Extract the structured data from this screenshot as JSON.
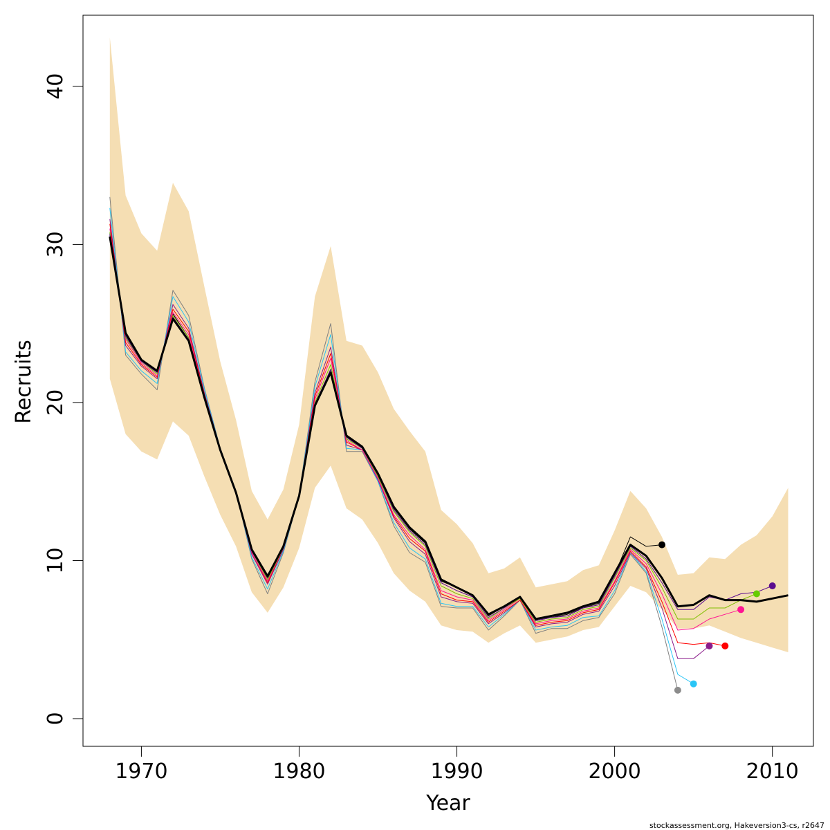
{
  "chart_data": {
    "type": "line",
    "title": "",
    "xlabel": "Year",
    "ylabel": "Recruits",
    "xlim": [
      1966.3,
      2012.6
    ],
    "ylim": [
      -1.75,
      44.5
    ],
    "x_ticks": [
      1970,
      1980,
      1990,
      2000,
      2010
    ],
    "x_tick_labels": [
      "1970",
      "1980",
      "1990",
      "2000",
      "2010"
    ],
    "y_ticks": [
      0,
      10,
      20,
      30,
      40
    ],
    "y_tick_labels": [
      "0",
      "10",
      "20",
      "30",
      "40"
    ],
    "grid": false,
    "legend": "none",
    "credit": "stockassessment.org, Hakeversion3-cs, r2647",
    "band": {
      "color": "#F5DEB3",
      "x": [
        1968,
        1969,
        1970,
        1971,
        1972,
        1973,
        1974,
        1975,
        1976,
        1977,
        1978,
        1979,
        1980,
        1981,
        1982,
        1983,
        1984,
        1985,
        1986,
        1987,
        1988,
        1989,
        1990,
        1991,
        1992,
        1993,
        1994,
        1995,
        1996,
        1997,
        1998,
        1999,
        2000,
        2001,
        2002,
        2003,
        2004,
        2005,
        2006,
        2007,
        2008,
        2009,
        2010,
        2011
      ],
      "lower": [
        21.5,
        18.0,
        16.9,
        16.4,
        18.8,
        17.9,
        15.3,
        12.9,
        10.9,
        8.0,
        6.7,
        8.3,
        10.8,
        14.6,
        16.0,
        13.3,
        12.6,
        11.1,
        9.2,
        8.1,
        7.4,
        5.9,
        5.6,
        5.5,
        4.8,
        5.4,
        5.9,
        4.8,
        5.0,
        5.2,
        5.6,
        5.8,
        7.1,
        8.4,
        8.0,
        6.9,
        5.7,
        5.7,
        5.9,
        5.5,
        5.1,
        4.8,
        4.5,
        4.2
      ],
      "upper": [
        43.1,
        33.1,
        30.7,
        29.6,
        33.9,
        32.1,
        27.3,
        22.6,
        18.9,
        14.4,
        12.6,
        14.5,
        18.6,
        26.7,
        29.9,
        23.9,
        23.6,
        21.9,
        19.6,
        18.2,
        16.9,
        13.2,
        12.3,
        11.1,
        9.2,
        9.5,
        10.2,
        8.3,
        8.5,
        8.7,
        9.4,
        9.7,
        11.9,
        14.4,
        13.3,
        11.5,
        9.1,
        9.2,
        10.2,
        10.1,
        11.0,
        11.6,
        12.8,
        14.6
      ]
    },
    "series": [
      {
        "color": "#000000",
        "width": 3,
        "x": [
          1968,
          1969,
          1970,
          1971,
          1972,
          1973,
          1974,
          1975,
          1976,
          1977,
          1978,
          1979,
          1980,
          1981,
          1982,
          1983,
          1984,
          1985,
          1986,
          1987,
          1988,
          1989,
          1990,
          1991,
          1992,
          1993,
          1994,
          1995,
          1996,
          1997,
          1998,
          1999,
          2000,
          2001,
          2002,
          2003,
          2004,
          2005,
          2006,
          2007,
          2008,
          2009,
          2010,
          2011
        ],
        "y": [
          30.5,
          24.4,
          22.7,
          22.0,
          25.3,
          23.9,
          20.3,
          17.0,
          14.3,
          10.7,
          9.0,
          10.9,
          14.1,
          19.8,
          21.9,
          17.9,
          17.2,
          15.5,
          13.4,
          12.1,
          11.2,
          8.8,
          8.3,
          7.8,
          6.6,
          7.1,
          7.7,
          6.3,
          6.5,
          6.7,
          7.1,
          7.4,
          9.2,
          11.0,
          10.3,
          8.9,
          7.1,
          7.2,
          7.8,
          7.5,
          7.5,
          7.4,
          7.6,
          7.8
        ]
      },
      {
        "color": "#000000",
        "width": 1,
        "x": [
          1968,
          1969,
          1970,
          1971,
          1972,
          1973,
          1974,
          1975,
          1976,
          1977,
          1978,
          1979,
          1980,
          1981,
          1982,
          1983,
          1984,
          1985,
          1986,
          1987,
          1988,
          1989,
          1990,
          1991,
          1992,
          1993,
          1994,
          1995,
          1996,
          1997,
          1998,
          1999,
          2000,
          2001,
          2002,
          2003
        ],
        "y": [
          30.7,
          24.3,
          22.6,
          21.9,
          25.6,
          24.1,
          20.4,
          17.0,
          14.3,
          10.7,
          9.1,
          10.9,
          14.1,
          19.8,
          22.1,
          17.8,
          17.1,
          15.4,
          13.3,
          12.0,
          11.1,
          8.7,
          8.3,
          7.8,
          6.5,
          7.1,
          7.7,
          6.2,
          6.4,
          6.6,
          7.0,
          7.3,
          9.1,
          11.5,
          10.9,
          11.0
        ]
      },
      {
        "color": "#7F7F7F",
        "width": 1,
        "x": [
          1968,
          1969,
          1970,
          1971,
          1972,
          1973,
          1974,
          1975,
          1976,
          1977,
          1978,
          1979,
          1980,
          1981,
          1982,
          1983,
          1984,
          1985,
          1986,
          1987,
          1988,
          1989,
          1990,
          1991,
          1992,
          1993,
          1994,
          1995,
          1996,
          1997,
          1998,
          1999,
          2000,
          2001,
          2002,
          2003,
          2004
        ],
        "y": [
          33.0,
          23.0,
          21.8,
          20.8,
          27.1,
          25.5,
          20.9,
          17.1,
          14.4,
          10.1,
          7.9,
          10.5,
          14.1,
          21.3,
          25.0,
          16.9,
          16.9,
          15.0,
          12.2,
          10.5,
          9.9,
          7.1,
          7.0,
          7.0,
          5.6,
          6.5,
          7.5,
          5.4,
          5.7,
          5.7,
          6.2,
          6.4,
          7.9,
          10.4,
          9.2,
          5.8,
          1.8
        ]
      },
      {
        "color": "#29C5F6",
        "width": 1,
        "x": [
          1968,
          1969,
          1970,
          1971,
          1972,
          1973,
          1974,
          1975,
          1976,
          1977,
          1978,
          1979,
          1980,
          1981,
          1982,
          1983,
          1984,
          1985,
          1986,
          1987,
          1988,
          1989,
          1990,
          1991,
          1992,
          1993,
          1994,
          1995,
          1996,
          1997,
          1998,
          1999,
          2000,
          2001,
          2002,
          2003,
          2004,
          2005
        ],
        "y": [
          32.3,
          23.2,
          22.0,
          21.2,
          26.7,
          25.1,
          20.8,
          17.1,
          14.4,
          10.2,
          8.2,
          10.6,
          14.1,
          21.0,
          24.3,
          17.1,
          17.0,
          15.0,
          12.4,
          10.8,
          10.1,
          7.3,
          7.1,
          7.1,
          5.8,
          6.6,
          7.5,
          5.6,
          5.8,
          5.9,
          6.4,
          6.5,
          8.1,
          10.5,
          9.3,
          6.3,
          2.8,
          2.2
        ]
      },
      {
        "color": "#8B1C8B",
        "width": 1,
        "x": [
          1968,
          1969,
          1970,
          1971,
          1972,
          1973,
          1974,
          1975,
          1976,
          1977,
          1978,
          1979,
          1980,
          1981,
          1982,
          1983,
          1984,
          1985,
          1986,
          1987,
          1988,
          1989,
          1990,
          1991,
          1992,
          1993,
          1994,
          1995,
          1996,
          1997,
          1998,
          1999,
          2000,
          2001,
          2002,
          2003,
          2004,
          2005,
          2006
        ],
        "y": [
          31.6,
          23.6,
          22.3,
          21.5,
          26.2,
          24.7,
          20.6,
          17.1,
          14.3,
          10.4,
          8.5,
          10.7,
          14.1,
          20.6,
          23.5,
          17.3,
          17.0,
          15.1,
          12.7,
          11.2,
          10.4,
          7.7,
          7.4,
          7.3,
          6.0,
          6.7,
          7.5,
          5.8,
          6.0,
          6.1,
          6.6,
          6.8,
          8.4,
          10.5,
          9.5,
          7.0,
          3.8,
          3.8,
          4.6
        ]
      },
      {
        "color": "#FF0000",
        "width": 1,
        "x": [
          1968,
          1969,
          1970,
          1971,
          1972,
          1973,
          1974,
          1975,
          1976,
          1977,
          1978,
          1979,
          1980,
          1981,
          1982,
          1983,
          1984,
          1985,
          1986,
          1987,
          1988,
          1989,
          1990,
          1991,
          1992,
          1993,
          1994,
          1995,
          1996,
          1997,
          1998,
          1999,
          2000,
          2001,
          2002,
          2003,
          2004,
          2005,
          2006,
          2007
        ],
        "y": [
          31.3,
          23.8,
          22.4,
          21.6,
          25.9,
          24.5,
          20.5,
          17.0,
          14.3,
          10.5,
          8.6,
          10.8,
          14.1,
          20.4,
          23.1,
          17.5,
          17.0,
          15.2,
          12.8,
          11.4,
          10.6,
          7.9,
          7.5,
          7.4,
          6.1,
          6.8,
          7.5,
          5.9,
          6.1,
          6.2,
          6.7,
          6.9,
          8.6,
          10.6,
          9.6,
          7.4,
          4.8,
          4.7,
          4.8,
          4.6
        ]
      },
      {
        "color": "#FF1493",
        "width": 1,
        "x": [
          1968,
          1969,
          1970,
          1971,
          1972,
          1973,
          1974,
          1975,
          1976,
          1977,
          1978,
          1979,
          1980,
          1981,
          1982,
          1983,
          1984,
          1985,
          1986,
          1987,
          1988,
          1989,
          1990,
          1991,
          1992,
          1993,
          1994,
          1995,
          1996,
          1997,
          1998,
          1999,
          2000,
          2001,
          2002,
          2003,
          2004,
          2005,
          2006,
          2007,
          2008
        ],
        "y": [
          31.0,
          24.0,
          22.5,
          21.7,
          25.7,
          24.3,
          20.4,
          17.0,
          14.3,
          10.5,
          8.7,
          10.8,
          14.1,
          20.2,
          22.8,
          17.6,
          17.0,
          15.2,
          12.9,
          11.6,
          10.7,
          8.1,
          7.7,
          7.5,
          6.2,
          6.9,
          7.6,
          6.0,
          6.2,
          6.3,
          6.8,
          7.0,
          8.7,
          10.7,
          9.8,
          7.9,
          5.6,
          5.7,
          6.3,
          6.6,
          6.9
        ]
      },
      {
        "color": "#7FBF00",
        "width": 1,
        "x": [
          1968,
          1969,
          1970,
          1971,
          1972,
          1973,
          1974,
          1975,
          1976,
          1977,
          1978,
          1979,
          1980,
          1981,
          1982,
          1983,
          1984,
          1985,
          1986,
          1987,
          1988,
          1989,
          1990,
          1991,
          1992,
          1993,
          1994,
          1995,
          1996,
          1997,
          1998,
          1999,
          2000,
          2001,
          2002,
          2003,
          2004,
          2005,
          2006,
          2007,
          2008,
          2009
        ],
        "y": [
          30.8,
          24.1,
          22.6,
          21.8,
          25.5,
          24.1,
          20.4,
          17.0,
          14.3,
          10.6,
          8.8,
          10.8,
          14.1,
          20.0,
          22.4,
          17.7,
          17.1,
          15.3,
          13.1,
          11.8,
          10.9,
          8.4,
          7.9,
          7.6,
          6.3,
          7.0,
          7.6,
          6.1,
          6.3,
          6.4,
          6.9,
          7.1,
          8.9,
          10.8,
          10.0,
          8.3,
          6.3,
          6.3,
          7.0,
          7.0,
          7.5,
          7.9
        ]
      },
      {
        "color": "#5B0C8F",
        "width": 1,
        "x": [
          1968,
          1969,
          1970,
          1971,
          1972,
          1973,
          1974,
          1975,
          1976,
          1977,
          1978,
          1979,
          1980,
          1981,
          1982,
          1983,
          1984,
          1985,
          1986,
          1987,
          1988,
          1989,
          1990,
          1991,
          1992,
          1993,
          1994,
          1995,
          1996,
          1997,
          1998,
          1999,
          2000,
          2001,
          2002,
          2003,
          2004,
          2005,
          2006,
          2007,
          2008,
          2009,
          2010
        ],
        "y": [
          30.6,
          24.2,
          22.6,
          21.9,
          25.4,
          24.0,
          20.3,
          17.0,
          14.3,
          10.6,
          8.9,
          10.9,
          14.1,
          19.9,
          22.1,
          17.8,
          17.1,
          15.4,
          13.2,
          11.9,
          11.0,
          8.6,
          8.1,
          7.7,
          6.4,
          7.0,
          7.7,
          6.2,
          6.4,
          6.5,
          7.0,
          7.2,
          9.0,
          10.9,
          10.1,
          8.6,
          6.9,
          6.9,
          7.7,
          7.5,
          7.9,
          8.0,
          8.4
        ]
      }
    ],
    "end_points": [
      {
        "x": 2003,
        "y": 11.0,
        "color": "#000000"
      },
      {
        "x": 2004,
        "y": 1.8,
        "color": "#8C8C8C"
      },
      {
        "x": 2005,
        "y": 2.2,
        "color": "#29C5F6"
      },
      {
        "x": 2006,
        "y": 4.6,
        "color": "#8B1C8B"
      },
      {
        "x": 2007,
        "y": 4.6,
        "color": "#FF0000"
      },
      {
        "x": 2008,
        "y": 6.9,
        "color": "#FF1493"
      },
      {
        "x": 2009,
        "y": 7.9,
        "color": "#66CC00"
      },
      {
        "x": 2010,
        "y": 8.4,
        "color": "#5B0C8F"
      }
    ]
  }
}
